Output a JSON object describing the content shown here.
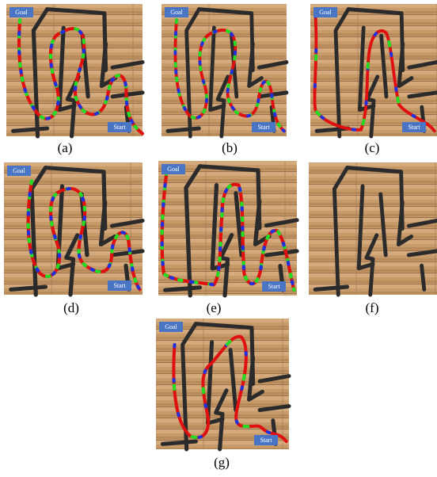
{
  "panels": [
    {
      "caption": "(a)",
      "goal": "Goal",
      "start": "Start"
    },
    {
      "caption": "(b)",
      "goal": "Goal",
      "start": "Start"
    },
    {
      "caption": "(c)",
      "goal": "Goal",
      "start": "Start"
    },
    {
      "caption": "(d)",
      "goal": "Goal",
      "start": "Start"
    },
    {
      "caption": "(e)",
      "goal": "Goal",
      "start": "Start"
    },
    {
      "caption": "(f)"
    },
    {
      "caption": "(g)",
      "goal": "Goal",
      "start": "Start"
    }
  ]
}
